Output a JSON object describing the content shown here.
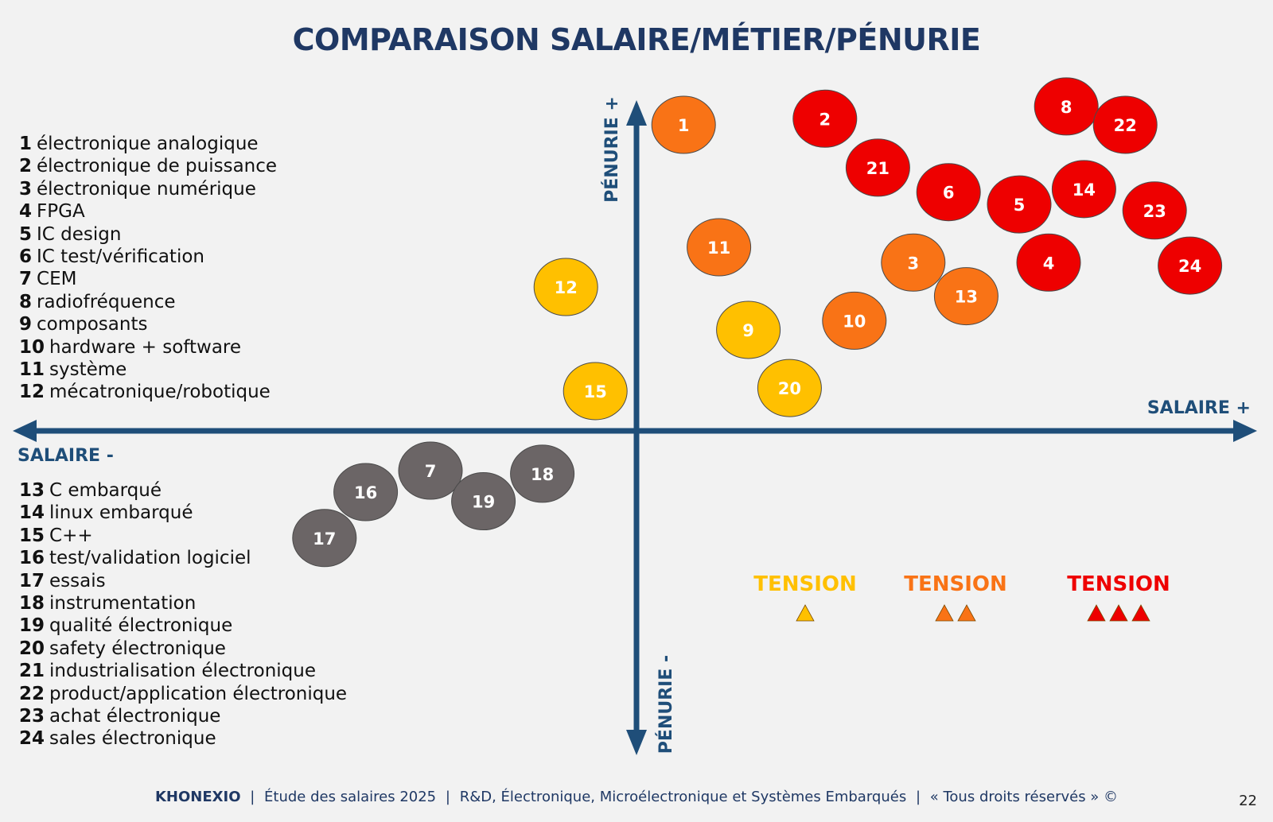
{
  "title": "COMPARAISON SALAIRE/MÉTIER/PÉNURIE",
  "colors": {
    "axis": "#1f4e79",
    "title": "#1f3864",
    "tension_1": "#ffc000",
    "tension_2": "#f97316",
    "tension_3": "#ee0000",
    "grey": "#6b6566"
  },
  "legend_top": [
    {
      "num": "1",
      "label": "électronique analogique"
    },
    {
      "num": "2",
      "label": "électronique de puissance"
    },
    {
      "num": "3",
      "label": "électronique numérique"
    },
    {
      "num": "4",
      "label": "FPGA"
    },
    {
      "num": "5",
      "label": "IC design"
    },
    {
      "num": "6",
      "label": "IC test/vérification"
    },
    {
      "num": "7",
      "label": "CEM"
    },
    {
      "num": "8",
      "label": "radiofréquence"
    },
    {
      "num": "9",
      "label": "composants"
    },
    {
      "num": "10",
      "label": "hardware + software"
    },
    {
      "num": "11",
      "label": "système"
    },
    {
      "num": "12",
      "label": "mécatronique/robotique"
    }
  ],
  "legend_bottom": [
    {
      "num": "13",
      "label": "C embarqué"
    },
    {
      "num": "14",
      "label": "linux embarqué"
    },
    {
      "num": "15",
      "label": "C++"
    },
    {
      "num": "16",
      "label": "test/validation logiciel"
    },
    {
      "num": "17",
      "label": "essais"
    },
    {
      "num": "18",
      "label": "instrumentation"
    },
    {
      "num": "19",
      "label": "qualité électronique"
    },
    {
      "num": "20",
      "label": "safety électronique"
    },
    {
      "num": "21",
      "label": "industrialisation électronique"
    },
    {
      "num": "22",
      "label": "product/application électronique"
    },
    {
      "num": "23",
      "label": "achat électronique"
    },
    {
      "num": "24",
      "label": "sales électronique"
    }
  ],
  "tension_legend": [
    {
      "label": "TENSION",
      "level": 1,
      "color": "#ffc000"
    },
    {
      "label": "TENSION",
      "level": 2,
      "color": "#f97316"
    },
    {
      "label": "TENSION",
      "level": 3,
      "color": "#ee0000"
    }
  ],
  "chart_data": {
    "type": "scatter",
    "xlabel_positive": "SALAIRE +",
    "xlabel_negative": "SALAIRE -",
    "ylabel_positive": "PÉNURIE +",
    "ylabel_negative": "PÉNURIE -",
    "xlim": [
      -10,
      10
    ],
    "ylim": [
      -10,
      10
    ],
    "points": [
      {
        "id": "1",
        "x": 0.8,
        "y": 10.0,
        "tension": 2
      },
      {
        "id": "2",
        "x": 3.2,
        "y": 10.2,
        "tension": 3
      },
      {
        "id": "3",
        "x": 4.7,
        "y": 5.5,
        "tension": 2
      },
      {
        "id": "4",
        "x": 7.0,
        "y": 5.5,
        "tension": 3
      },
      {
        "id": "5",
        "x": 6.5,
        "y": 7.4,
        "tension": 3
      },
      {
        "id": "6",
        "x": 5.3,
        "y": 7.8,
        "tension": 3
      },
      {
        "id": "7",
        "x": -3.5,
        "y": -1.3,
        "tension": 0
      },
      {
        "id": "8",
        "x": 7.3,
        "y": 10.6,
        "tension": 3
      },
      {
        "id": "9",
        "x": 1.9,
        "y": 3.3,
        "tension": 1
      },
      {
        "id": "10",
        "x": 3.7,
        "y": 3.6,
        "tension": 2
      },
      {
        "id": "11",
        "x": 1.4,
        "y": 6.0,
        "tension": 2
      },
      {
        "id": "12",
        "x": -1.2,
        "y": 4.7,
        "tension": 1
      },
      {
        "id": "13",
        "x": 5.6,
        "y": 4.4,
        "tension": 2
      },
      {
        "id": "14",
        "x": 7.6,
        "y": 7.9,
        "tension": 3
      },
      {
        "id": "15",
        "x": -0.7,
        "y": 1.3,
        "tension": 1
      },
      {
        "id": "16",
        "x": -4.6,
        "y": -2.0,
        "tension": 0
      },
      {
        "id": "17",
        "x": -5.3,
        "y": -3.5,
        "tension": 0
      },
      {
        "id": "18",
        "x": -1.6,
        "y": -1.4,
        "tension": 0
      },
      {
        "id": "19",
        "x": -2.6,
        "y": -2.3,
        "tension": 0
      },
      {
        "id": "20",
        "x": 2.6,
        "y": 1.4,
        "tension": 1
      },
      {
        "id": "21",
        "x": 4.1,
        "y": 8.6,
        "tension": 3
      },
      {
        "id": "22",
        "x": 8.3,
        "y": 10.0,
        "tension": 3
      },
      {
        "id": "23",
        "x": 8.8,
        "y": 7.2,
        "tension": 3
      },
      {
        "id": "24",
        "x": 9.4,
        "y": 5.4,
        "tension": 3
      }
    ]
  },
  "footer": {
    "brand": "KHONEXIO",
    "sep": "|",
    "part1": "Étude des salaires 2025",
    "part2": "R&D, Électronique, Microélectronique et Systèmes Embarqués",
    "part3": "« Tous droits réservés » ©"
  },
  "page_number": "22"
}
